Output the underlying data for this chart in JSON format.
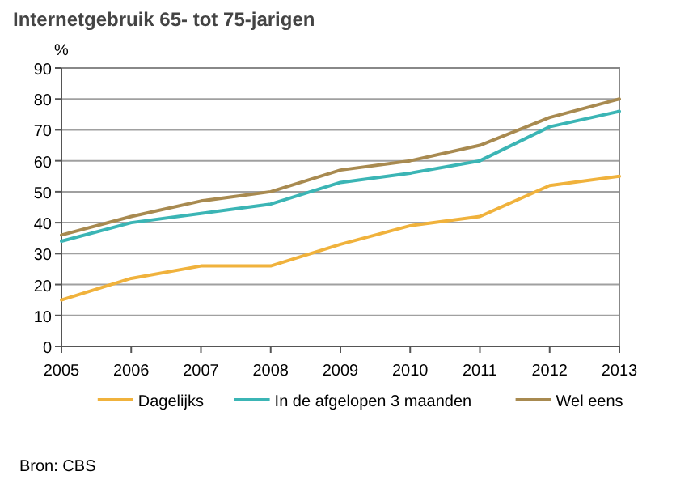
{
  "chart_data": {
    "type": "line",
    "title": "Internetgebruik 65- tot 75-jarigen",
    "ylabel": "%",
    "x": [
      2005,
      2006,
      2007,
      2008,
      2009,
      2010,
      2011,
      2012,
      2013
    ],
    "series": [
      {
        "name": "Dagelijks",
        "color": "#f0b23c",
        "values": [
          15,
          22,
          26,
          26,
          33,
          39,
          42,
          52,
          55
        ]
      },
      {
        "name": "In de afgelopen 3 maanden",
        "color": "#3bb5b5",
        "values": [
          34,
          40,
          43,
          46,
          53,
          56,
          60,
          71,
          76
        ]
      },
      {
        "name": "Wel eens",
        "color": "#a88a50",
        "values": [
          36,
          42,
          47,
          50,
          57,
          60,
          65,
          74,
          80
        ]
      }
    ],
    "xlim": [
      2005,
      2013
    ],
    "xticks": [
      2005,
      2006,
      2007,
      2008,
      2009,
      2010,
      2011,
      2012,
      2013
    ],
    "ylim": [
      0,
      90
    ],
    "yticks": [
      0,
      10,
      20,
      30,
      40,
      50,
      60,
      70,
      80,
      90
    ],
    "grid": "y",
    "legend": "bottom",
    "marker": "none",
    "line_style": "solid",
    "annotations": [
      "Bron: CBS"
    ]
  }
}
